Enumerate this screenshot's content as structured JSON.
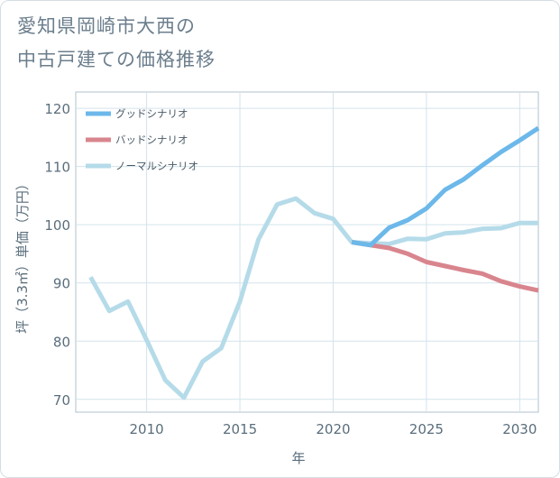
{
  "title_lines": [
    "愛知県岡崎市大西の",
    "中古戸建ての価格推移"
  ],
  "chart_data": {
    "type": "line",
    "title": "愛知県岡崎市大西の中古戸建ての価格推移",
    "xlabel": "年",
    "ylabel": "坪（3.3㎡）単価（万円）",
    "xlim": [
      2006.2,
      2031
    ],
    "ylim": [
      67.8,
      122.8
    ],
    "xticks": [
      2010,
      2015,
      2020,
      2025,
      2030
    ],
    "yticks": [
      70,
      80,
      90,
      100,
      110,
      120
    ],
    "legend_position": "top-left",
    "series": [
      {
        "name": "グッドシナリオ",
        "color": "#6cb8ea",
        "x": [
          2021,
          2022,
          2023,
          2024,
          2025,
          2026,
          2027,
          2028,
          2029,
          2030,
          2031
        ],
        "values": [
          97.0,
          96.5,
          99.5,
          100.8,
          102.8,
          106.0,
          107.8,
          110.2,
          112.5,
          114.5,
          116.6
        ]
      },
      {
        "name": "バッドシナリオ",
        "color": "#d9858e",
        "x": [
          2021,
          2022,
          2023,
          2024,
          2025,
          2026,
          2027,
          2028,
          2029,
          2030,
          2031
        ],
        "values": [
          97.0,
          96.5,
          96.0,
          95.0,
          93.6,
          92.9,
          92.2,
          91.6,
          90.3,
          89.4,
          88.7
        ]
      },
      {
        "name": "ノーマルシナリオ",
        "color": "#b5dbe9",
        "x": [
          2007,
          2008,
          2009,
          2010,
          2011,
          2012,
          2013,
          2014,
          2015,
          2016,
          2017,
          2018,
          2019,
          2020,
          2021,
          2022,
          2023,
          2024,
          2025,
          2026,
          2027,
          2028,
          2029,
          2030,
          2031
        ],
        "values": [
          91.0,
          85.2,
          86.8,
          80.2,
          73.3,
          70.3,
          76.5,
          78.8,
          86.8,
          97.5,
          103.5,
          104.5,
          102.0,
          101.0,
          97.0,
          96.8,
          96.7,
          97.6,
          97.5,
          98.5,
          98.7,
          99.3,
          99.4,
          100.3,
          100.3
        ]
      }
    ]
  }
}
